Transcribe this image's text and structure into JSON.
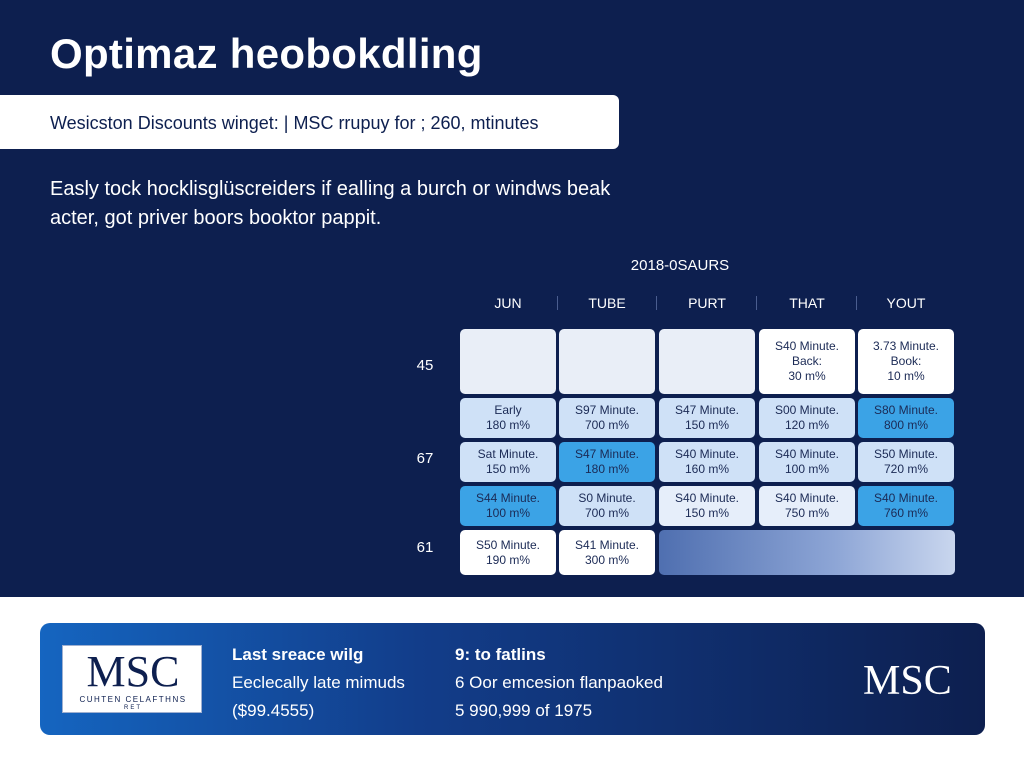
{
  "page": {
    "title": "Optimaz heobokdling",
    "banner": "Wesicston Discounts winget: | MSC rrupuy for ; 260, mtinutes",
    "description": "Easly tock hocklisglüscreiders if ealling a burch or windws beak acter, got priver boors booktor pappit."
  },
  "grid": {
    "title": "2018-0SAURS",
    "columns": [
      "JUN",
      "TUBE",
      "PURT",
      "THAT",
      "YOUT"
    ],
    "row_labels": [
      "45",
      "67",
      "61"
    ],
    "rows": [
      [
        {
          "lines": [
            "",
            ""
          ],
          "style": "empty"
        },
        {
          "lines": [
            "",
            ""
          ],
          "style": "empty"
        },
        {
          "lines": [
            "",
            ""
          ],
          "style": "empty"
        },
        {
          "lines": [
            "S40 Minute.",
            "Back:",
            "30 m%"
          ],
          "style": "white"
        },
        {
          "lines": [
            "3.73 Minute.",
            "Book:",
            "10 m%"
          ],
          "style": "white"
        }
      ],
      [
        {
          "lines": [
            "Early",
            "180 m%"
          ],
          "style": "light"
        },
        {
          "lines": [
            "S97 Minute.",
            "700 m%"
          ],
          "style": "light"
        },
        {
          "lines": [
            "S47 Minute.",
            "150 m%"
          ],
          "style": "light"
        },
        {
          "lines": [
            "S00 Minute.",
            "120 m%"
          ],
          "style": "light"
        },
        {
          "lines": [
            "S80 Minute.",
            "800 m%"
          ],
          "style": "bright"
        }
      ],
      [
        {
          "lines": [
            "Sat Minute.",
            "150 m%"
          ],
          "style": "light"
        },
        {
          "lines": [
            "S47 Minute.",
            "180 m%"
          ],
          "style": "bright"
        },
        {
          "lines": [
            "S40 Minute.",
            "160 m%"
          ],
          "style": "light"
        },
        {
          "lines": [
            "S40 Minute.",
            "100 m%"
          ],
          "style": "light"
        },
        {
          "lines": [
            "S50 Minute.",
            "720 m%"
          ],
          "style": "light"
        }
      ],
      [
        {
          "lines": [
            "S44 Minute.",
            "100 m%"
          ],
          "style": "bright"
        },
        {
          "lines": [
            "S0 Minute.",
            "700 m%"
          ],
          "style": "light"
        },
        {
          "lines": [
            "S40 Minute.",
            "150 m%"
          ],
          "style": "pale"
        },
        {
          "lines": [
            "S40 Minute.",
            "750 m%"
          ],
          "style": "pale"
        },
        {
          "lines": [
            "S40 Minute.",
            "760 m%"
          ],
          "style": "bright"
        }
      ],
      [
        {
          "lines": [
            "S50 Minute.",
            "190 m%"
          ],
          "style": "white"
        },
        {
          "lines": [
            "S41 Minute.",
            "300 m%"
          ],
          "style": "white"
        }
      ]
    ]
  },
  "footer": {
    "logo_main": "MSC",
    "logo_sub": "CUHTEN CELAFTHNS",
    "logo_sub2": "RET",
    "left_heading": "Last sreace wilg",
    "left_line1": "Eeclecally late mimuds",
    "left_line2": "($99.4555)",
    "right_heading": "9: to fatlins",
    "right_line1": "6  Oor emcesion flanpaoked",
    "right_line2": "5  990,999 of 1975",
    "brand_right": "MSC"
  },
  "colors": {
    "navy": "#0d1f4f",
    "bright_blue": "#3ba3e6",
    "light_blue": "#cfe1f7"
  }
}
